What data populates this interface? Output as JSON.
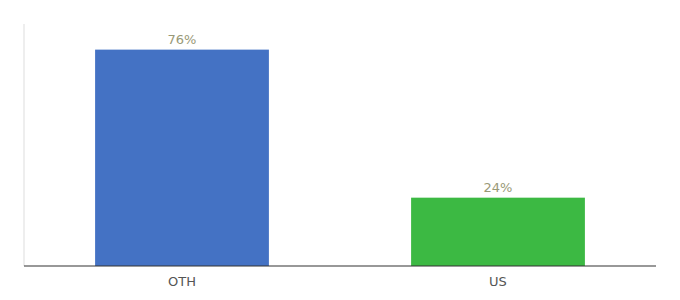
{
  "chart_data": {
    "type": "bar",
    "categories": [
      "OTH",
      "US"
    ],
    "values": [
      76,
      24
    ],
    "value_labels": [
      "76%",
      "24%"
    ],
    "colors": [
      "#4472C4",
      "#3CB943"
    ],
    "ylim": [
      0,
      85
    ],
    "grid": false,
    "data_labels": true,
    "tick_labels": "x"
  }
}
